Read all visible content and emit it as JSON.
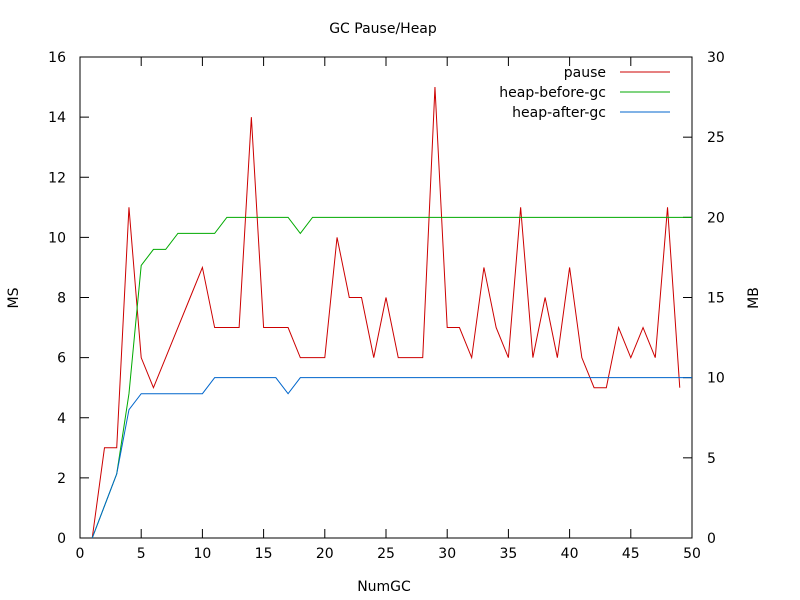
{
  "chart_data": {
    "type": "line",
    "title": "GC Pause/Heap",
    "xlabel": "NumGC",
    "ylabel": "MS",
    "y2label": "MB",
    "xlim": [
      0,
      50
    ],
    "ylim": [
      0,
      16
    ],
    "y2lim": [
      0,
      30
    ],
    "x_ticks": [
      0,
      5,
      10,
      15,
      20,
      25,
      30,
      35,
      40,
      45,
      50
    ],
    "y_ticks": [
      0,
      2,
      4,
      6,
      8,
      10,
      12,
      14,
      16
    ],
    "y2_ticks": [
      0,
      5,
      10,
      15,
      20,
      25,
      30
    ],
    "grid": false,
    "legend": "top-right",
    "series": [
      {
        "name": "pause",
        "axis": "left",
        "color": "#cc0000",
        "x": [
          1,
          2,
          3,
          4,
          5,
          6,
          7,
          8,
          9,
          10,
          11,
          12,
          13,
          14,
          15,
          16,
          17,
          18,
          19,
          20,
          21,
          22,
          23,
          24,
          25,
          26,
          27,
          28,
          29,
          30,
          31,
          32,
          33,
          34,
          35,
          36,
          37,
          38,
          39,
          40,
          41,
          42,
          43,
          44,
          45,
          46,
          47,
          48,
          49
        ],
        "values": [
          0,
          3,
          3,
          11,
          6,
          5,
          6,
          7,
          8,
          9,
          7,
          7,
          7,
          14,
          7,
          7,
          7,
          6,
          6,
          6,
          10,
          8,
          8,
          6,
          8,
          6,
          6,
          6,
          15,
          7,
          7,
          6,
          9,
          7,
          6,
          11,
          6,
          8,
          6,
          9,
          6,
          5,
          5,
          7,
          6,
          7,
          6,
          11,
          5
        ]
      },
      {
        "name": "heap-before-gc",
        "axis": "right",
        "color": "#00aa00",
        "x": [
          1,
          2,
          3,
          4,
          5,
          6,
          7,
          8,
          9,
          10,
          11,
          12,
          13,
          14,
          15,
          16,
          17,
          18,
          19,
          20,
          21,
          22,
          23,
          24,
          25,
          26,
          27,
          28,
          29,
          30,
          31,
          32,
          33,
          34,
          35,
          36,
          37,
          38,
          39,
          40,
          41,
          42,
          43,
          44,
          45,
          46,
          47,
          48,
          49,
          50
        ],
        "values": [
          0,
          2,
          4,
          9,
          17,
          18,
          18,
          19,
          19,
          19,
          19,
          20,
          20,
          20,
          20,
          20,
          20,
          19,
          20,
          20,
          20,
          20,
          20,
          20,
          20,
          20,
          20,
          20,
          20,
          20,
          20,
          20,
          20,
          20,
          20,
          20,
          20,
          20,
          20,
          20,
          20,
          20,
          20,
          20,
          20,
          20,
          20,
          20,
          20,
          20
        ]
      },
      {
        "name": "heap-after-gc",
        "axis": "right",
        "color": "#0066cc",
        "x": [
          1,
          2,
          3,
          4,
          5,
          6,
          7,
          8,
          9,
          10,
          11,
          12,
          13,
          14,
          15,
          16,
          17,
          18,
          19,
          20,
          21,
          22,
          23,
          24,
          25,
          26,
          27,
          28,
          29,
          30,
          31,
          32,
          33,
          34,
          35,
          36,
          37,
          38,
          39,
          40,
          41,
          42,
          43,
          44,
          45,
          46,
          47,
          48,
          49,
          50
        ],
        "values": [
          0,
          2,
          4,
          8,
          9,
          9,
          9,
          9,
          9,
          9,
          10,
          10,
          10,
          10,
          10,
          10,
          9,
          10,
          10,
          10,
          10,
          10,
          10,
          10,
          10,
          10,
          10,
          10,
          10,
          10,
          10,
          10,
          10,
          10,
          10,
          10,
          10,
          10,
          10,
          10,
          10,
          10,
          10,
          10,
          10,
          10,
          10,
          10,
          10,
          10
        ]
      }
    ]
  }
}
